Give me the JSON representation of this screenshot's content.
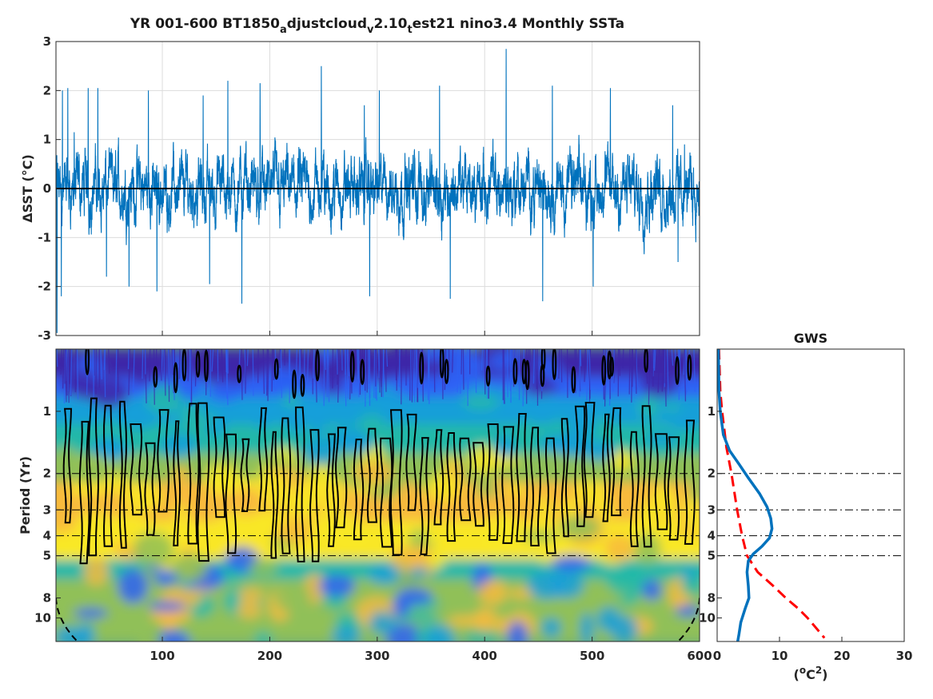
{
  "chart_data": [
    {
      "panel": "time-series",
      "type": "line",
      "title_parts": {
        "a": "YR 001-600 BT1850",
        "a_sub": "a",
        "b": "djustcloud",
        "b_sub": "v",
        "c": "2.10",
        "c_sub": "t",
        "d": "est21 nino3.4 Monthly SSTa"
      },
      "ylabel": "ΔSST (°C)",
      "xlim": [
        1,
        600
      ],
      "ylim": [
        -3,
        3
      ],
      "xticks": [
        100,
        200,
        300,
        400,
        500,
        600
      ],
      "yticks": [
        -3,
        -2,
        -1,
        0,
        1,
        2,
        3
      ],
      "grid": true,
      "series": [
        {
          "color": "#0072bd",
          "notable_peaks": [
            [
              7,
              2.0
            ],
            [
              12,
              2.05
            ],
            [
              18,
              1.15
            ],
            [
              31,
              2.05
            ],
            [
              40,
              2.05
            ],
            [
              87,
              2.0
            ],
            [
              138,
              1.9
            ],
            [
              161,
              2.2
            ],
            [
              191,
              2.15
            ],
            [
              248,
              2.5
            ],
            [
              288,
              1.7
            ],
            [
              302,
              2.0
            ],
            [
              358,
              2.1
            ],
            [
              420,
              2.85
            ],
            [
              463,
              2.1
            ],
            [
              517,
              2.05
            ],
            [
              575,
              1.7
            ],
            [
              586,
              0.9
            ]
          ],
          "notable_troughs": [
            [
              2,
              -2.95
            ],
            [
              6,
              -2.2
            ],
            [
              48,
              -1.8
            ],
            [
              69,
              -2.0
            ],
            [
              95,
              -2.1
            ],
            [
              144,
              -1.95
            ],
            [
              174,
              -2.35
            ],
            [
              293,
              -2.2
            ],
            [
              368,
              -2.25
            ],
            [
              454,
              -2.3
            ],
            [
              501,
              -2.0
            ],
            [
              580,
              -1.5
            ]
          ]
        }
      ],
      "reference_line": {
        "y": 0,
        "color": "#000000"
      }
    },
    {
      "panel": "wavelet-power",
      "type": "heatmap",
      "ylabel": "Period (Yr)",
      "ylog": true,
      "ylim": [
        0.5,
        13
      ],
      "y_reversed": true,
      "xlim": [
        1,
        600
      ],
      "xticks": [
        100,
        200,
        300,
        400,
        500,
        600
      ],
      "yticks": [
        1,
        2,
        3,
        4,
        5,
        8,
        10
      ],
      "dash_dot_lines": [
        2,
        3,
        4,
        5
      ],
      "colormap": [
        "#3d26a8",
        "#2d62f5",
        "#179fd9",
        "#22b8a9",
        "#90c058",
        "#f8ba3d",
        "#f9e726"
      ],
      "significant_regions_period_range": [
        0.85,
        5.5
      ],
      "cone_of_influence": {
        "style": "dashed",
        "color": "#000000"
      }
    },
    {
      "panel": "global-wavelet-spectrum",
      "type": "line",
      "title": "GWS",
      "xlabel_base": "(",
      "xlabel_unit": "o",
      "xlabel_mid": "C",
      "xlabel_exp": "2",
      "xlabel_end": ")",
      "xlim": [
        0,
        30
      ],
      "xticks": [
        0,
        10,
        20,
        30
      ],
      "yticks": [
        1,
        2,
        3,
        4,
        5,
        8,
        10
      ],
      "dash_dot_lines": [
        2,
        3,
        4,
        5
      ],
      "series": [
        {
          "kind": "power",
          "color": "#0072bd",
          "points": [
            [
              0.2,
              0.5
            ],
            [
              0.3,
              0.8
            ],
            [
              0.5,
              1.0
            ],
            [
              1.0,
              1.3
            ],
            [
              2.0,
              1.55
            ],
            [
              3.5,
              1.8
            ],
            [
              5.0,
              2.1
            ],
            [
              6.8,
              2.5
            ],
            [
              8.0,
              2.9
            ],
            [
              8.6,
              3.3
            ],
            [
              8.8,
              3.7
            ],
            [
              8.4,
              4.1
            ],
            [
              7.2,
              4.5
            ],
            [
              5.8,
              4.9
            ],
            [
              5.0,
              5.3
            ],
            [
              4.8,
              6.0
            ],
            [
              5.0,
              7.0
            ],
            [
              5.1,
              8.0
            ],
            [
              4.5,
              9.0
            ],
            [
              3.8,
              10.5
            ],
            [
              3.5,
              12.0
            ],
            [
              3.3,
              13.0
            ]
          ]
        },
        {
          "kind": "significance",
          "style": "dashed",
          "color": "#ff0000",
          "points": [
            [
              0.3,
              0.5
            ],
            [
              0.5,
              0.8
            ],
            [
              0.8,
              1.0
            ],
            [
              1.5,
              1.5
            ],
            [
              2.3,
              2.0
            ],
            [
              3.2,
              3.0
            ],
            [
              4.0,
              4.0
            ],
            [
              4.8,
              5.0
            ],
            [
              6.5,
              6.0
            ],
            [
              9.0,
              7.0
            ],
            [
              11.0,
              8.0
            ],
            [
              13.0,
              9.0
            ],
            [
              14.5,
              10.0
            ],
            [
              16.2,
              11.5
            ],
            [
              17.2,
              12.5
            ]
          ]
        }
      ]
    }
  ]
}
